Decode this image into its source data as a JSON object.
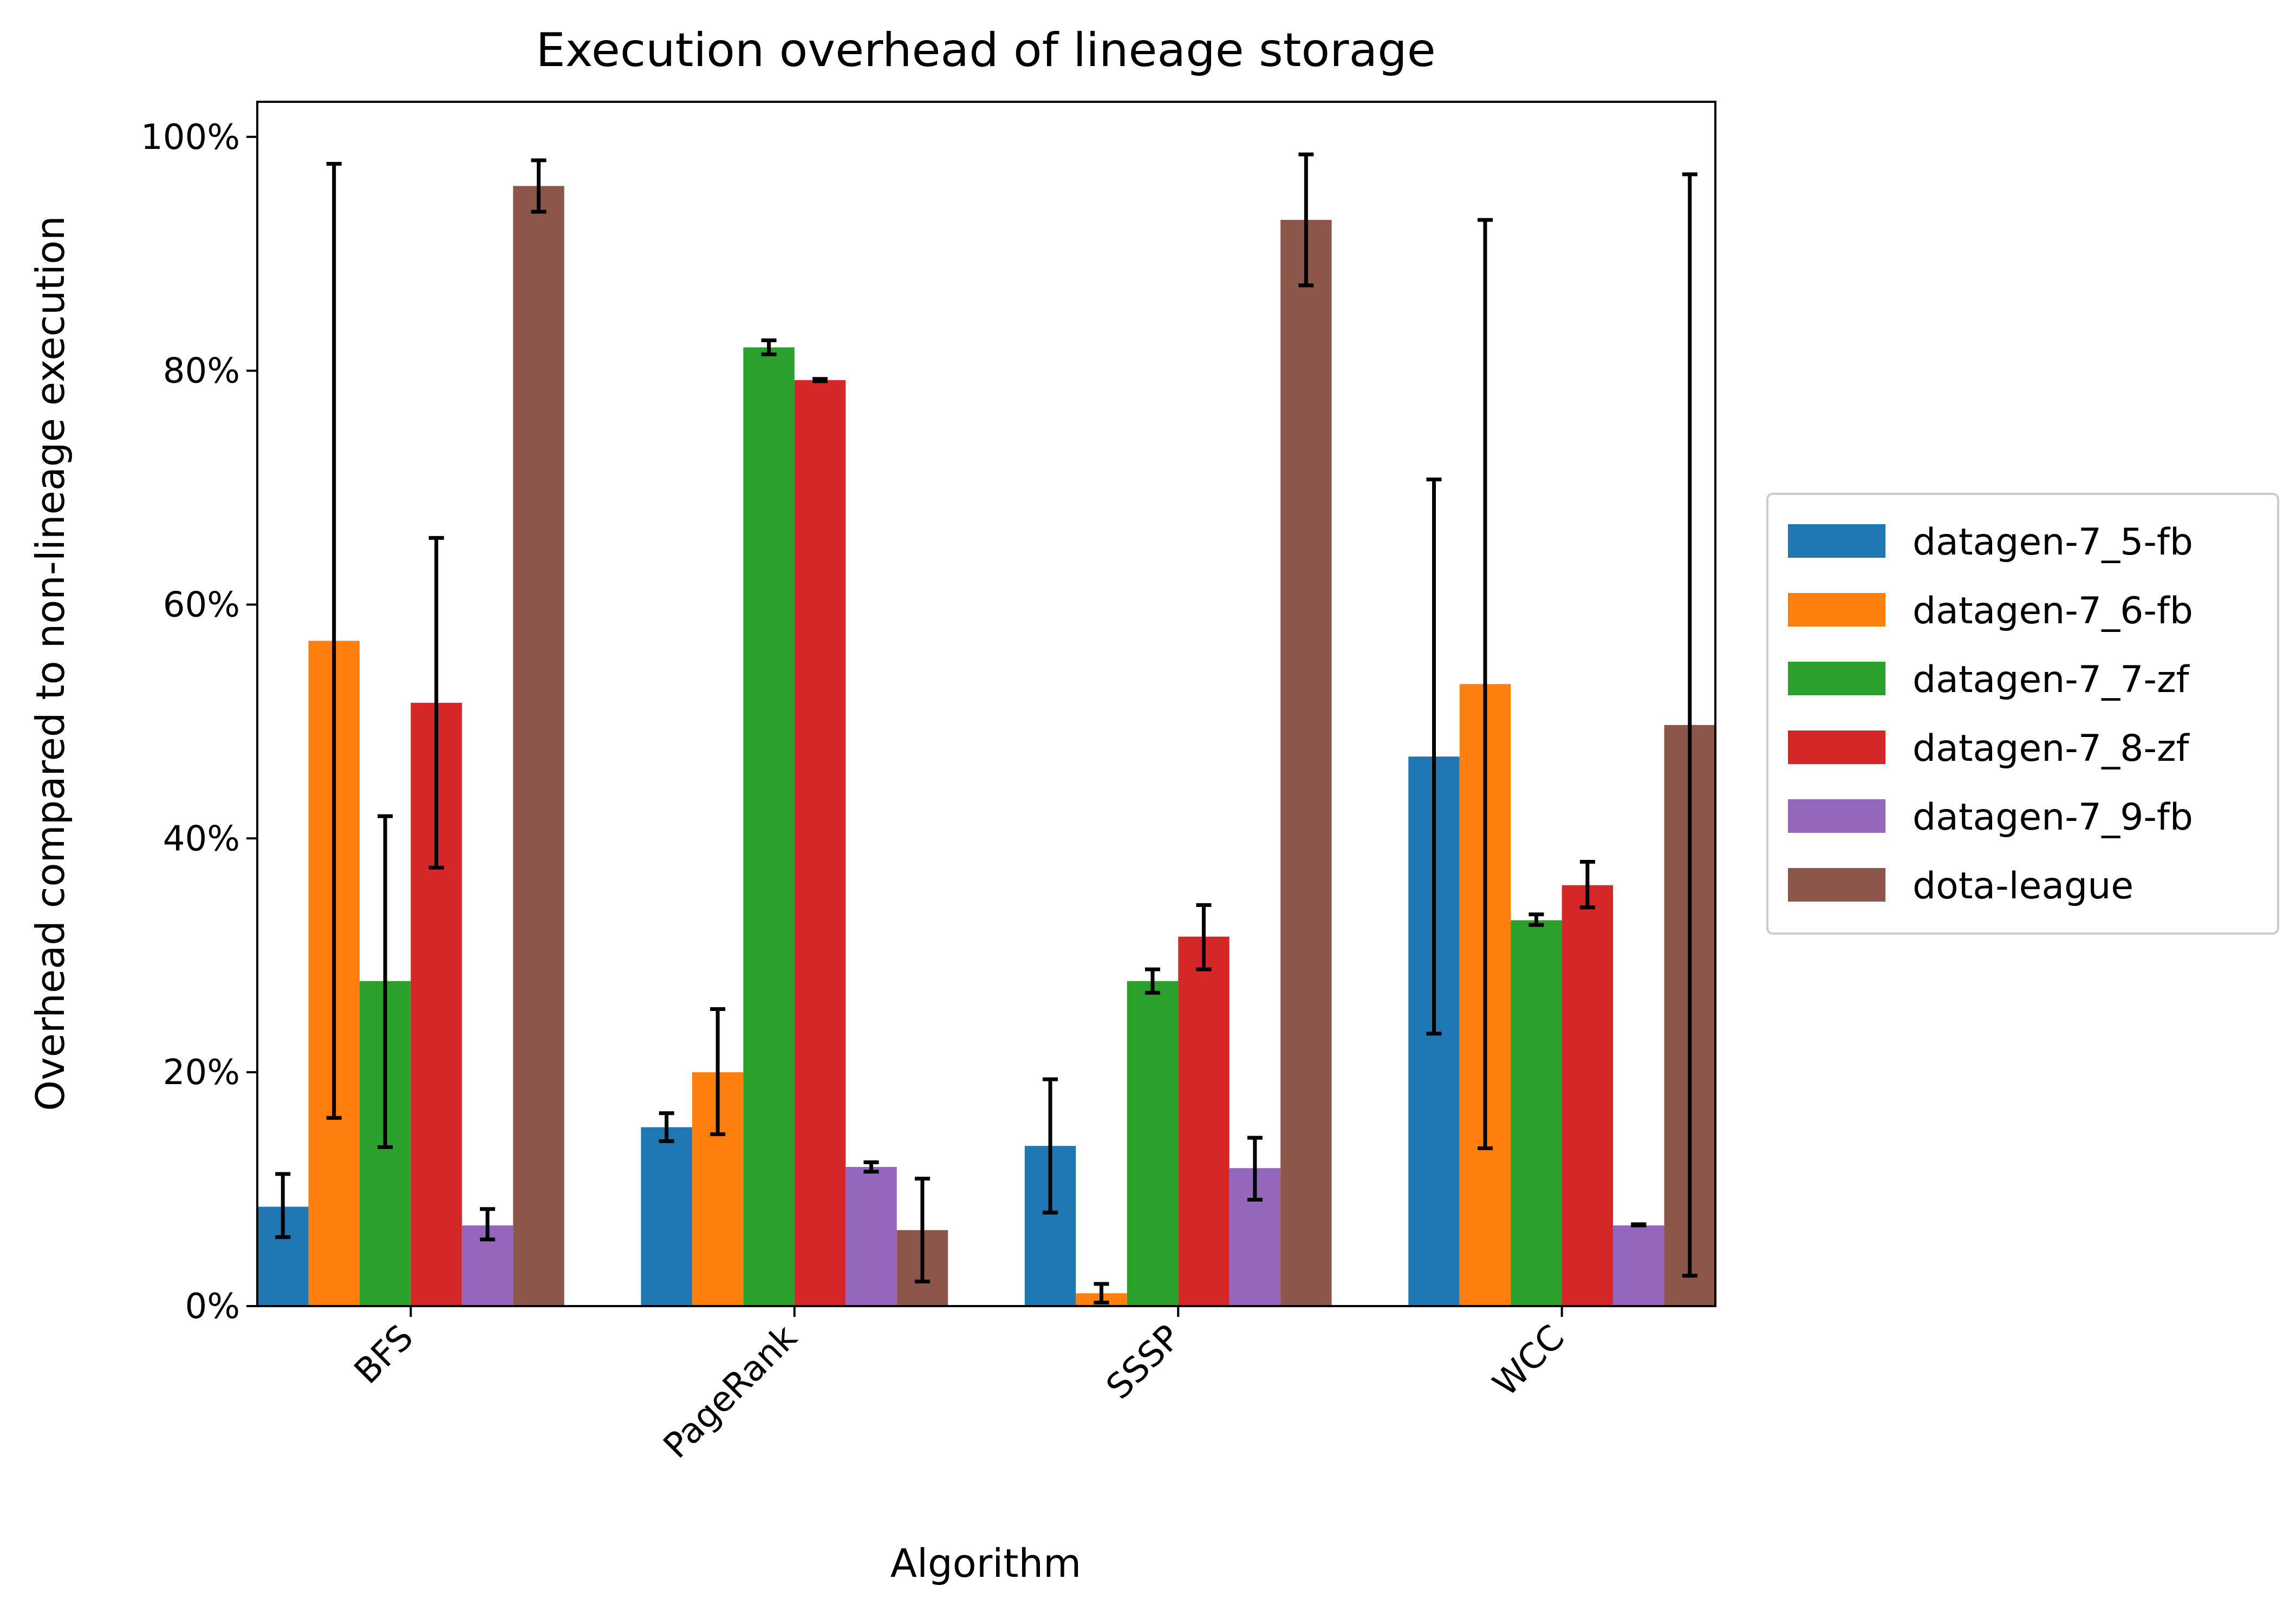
{
  "chart_data": {
    "type": "bar",
    "title": "Execution overhead of lineage storage",
    "xlabel": "Algorithm",
    "ylabel": "Overhead compared to non-lineage execution",
    "categories": [
      "BFS",
      "PageRank",
      "SSSP",
      "WCC"
    ],
    "ylim": [
      0,
      1.03
    ],
    "yticks": [
      0,
      0.2,
      0.4,
      0.6,
      0.8,
      1.0
    ],
    "ytick_labels": [
      "0%",
      "20%",
      "40%",
      "60%",
      "80%",
      "100%"
    ],
    "grid": false,
    "legend_position": "right-center",
    "series": [
      {
        "name": "datagen-7_5-fb",
        "color": "#1f77b4",
        "values": [
          0.085,
          0.153,
          0.137,
          0.47
        ],
        "err_low": [
          0.059,
          0.141,
          0.08,
          0.233
        ],
        "err_high": [
          0.113,
          0.165,
          0.194,
          0.707
        ]
      },
      {
        "name": "datagen-7_6-fb",
        "color": "#ff7f0e",
        "values": [
          0.569,
          0.2,
          0.011,
          0.532
        ],
        "err_low": [
          0.161,
          0.147,
          0.003,
          0.135
        ],
        "err_high": [
          0.977,
          0.254,
          0.019,
          0.929
        ]
      },
      {
        "name": "datagen-7_7-zf",
        "color": "#2ca02c",
        "values": [
          0.278,
          0.82,
          0.278,
          0.33
        ],
        "err_low": [
          0.136,
          0.814,
          0.268,
          0.326
        ],
        "err_high": [
          0.419,
          0.826,
          0.288,
          0.335
        ]
      },
      {
        "name": "datagen-7_8-zf",
        "color": "#d62728",
        "values": [
          0.516,
          0.792,
          0.316,
          0.36
        ],
        "err_low": [
          0.375,
          0.791,
          0.288,
          0.341
        ],
        "err_high": [
          0.657,
          0.793,
          0.343,
          0.38
        ]
      },
      {
        "name": "datagen-7_9-fb",
        "color": "#9467bd",
        "values": [
          0.069,
          0.119,
          0.118,
          0.069
        ],
        "err_low": [
          0.057,
          0.115,
          0.091,
          0.069
        ],
        "err_high": [
          0.083,
          0.123,
          0.144,
          0.07
        ]
      },
      {
        "name": "dota-league",
        "color": "#8c564b",
        "values": [
          0.958,
          0.065,
          0.929,
          0.497
        ],
        "err_low": [
          0.936,
          0.021,
          0.873,
          0.026
        ],
        "err_high": [
          0.98,
          0.109,
          0.985,
          0.968
        ]
      }
    ]
  }
}
